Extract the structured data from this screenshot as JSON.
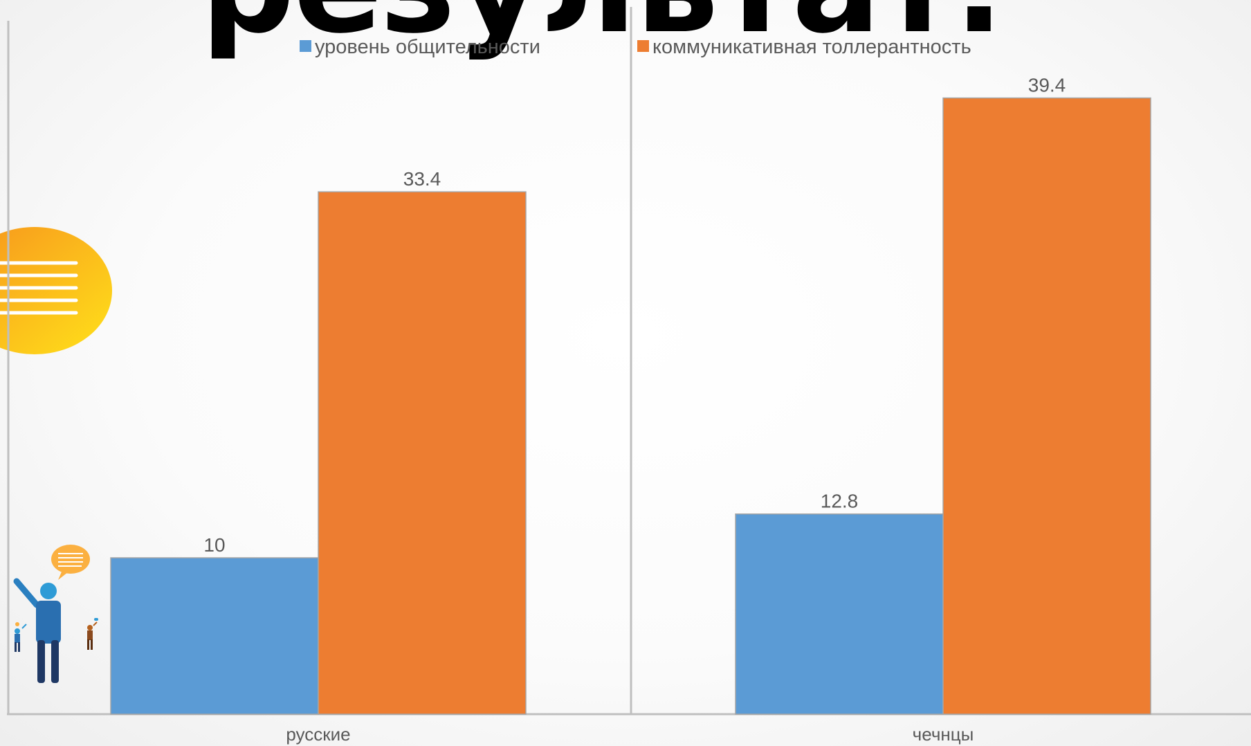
{
  "slide": {
    "title_fragment": "результат."
  },
  "chart_data": {
    "type": "bar",
    "categories": [
      "русские",
      "чечнцы"
    ],
    "series": [
      {
        "name": "уровень общительности",
        "color": "#5b9bd5",
        "values": [
          10,
          12.8
        ]
      },
      {
        "name": "коммуникативная толлерантность",
        "color": "#ed7d31",
        "values": [
          33.4,
          39.4
        ]
      }
    ],
    "ylim": [
      0,
      45
    ],
    "grid": false,
    "legend_position": "top",
    "data_labels": true
  },
  "decorations": {
    "speech_bubble_color": "#fbb040",
    "figure_colors": [
      "#1f3864",
      "#2e9bd6",
      "#8b4a1e"
    ]
  }
}
